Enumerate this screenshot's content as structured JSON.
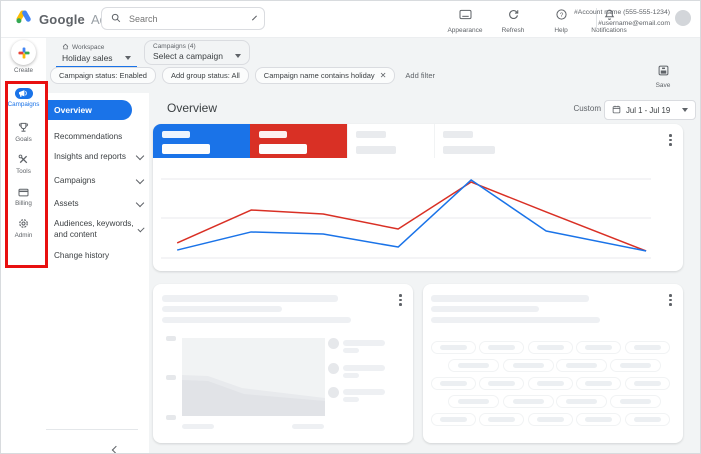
{
  "header": {
    "logo": {
      "brand": "Google",
      "product": "Ads"
    },
    "search": {
      "placeholder": "Search"
    },
    "actions": [
      {
        "label": "Appearance",
        "icon": "appearance-icon"
      },
      {
        "label": "Refresh",
        "icon": "refresh-icon"
      },
      {
        "label": "Help",
        "icon": "help-icon"
      },
      {
        "label": "Notifications",
        "icon": "notifications-icon"
      }
    ],
    "account": {
      "line1": "#Account name (555-555-1234)",
      "line2": "#username@email.com"
    }
  },
  "toolbar": {
    "workspace": {
      "label": "Workspace",
      "value": "Holiday sales"
    },
    "campaign_select": {
      "label": "Campaigns (4)",
      "value": "Select a campaign"
    },
    "filter_chips": [
      {
        "label": "Campaign status: Enabled",
        "closable": false
      },
      {
        "label": "Add group status: All",
        "closable": false
      },
      {
        "label": "Campaign name contains holiday",
        "closable": true
      }
    ],
    "add_filter": "Add filter",
    "save": "Save"
  },
  "rail": {
    "create": "Create",
    "items": [
      {
        "label": "Campaigns",
        "icon": "campaigns-icon",
        "active": true
      },
      {
        "label": "Goals",
        "icon": "goals-icon",
        "active": false
      },
      {
        "label": "Tools",
        "icon": "tools-icon",
        "active": false
      },
      {
        "label": "Billing",
        "icon": "billing-icon",
        "active": false
      },
      {
        "label": "Admin",
        "icon": "admin-icon",
        "active": false
      }
    ]
  },
  "annotation": {
    "color": "#e81010"
  },
  "nav": {
    "items": [
      {
        "label": "Overview",
        "active": true,
        "expandable": false
      },
      {
        "label": "Recommendations",
        "active": false,
        "expandable": false
      },
      {
        "label": "Insights and reports",
        "active": false,
        "expandable": true
      },
      {
        "label": "Campaigns",
        "active": false,
        "expandable": true
      },
      {
        "label": "Assets",
        "active": false,
        "expandable": true
      },
      {
        "label": "Audiences, keywords, and content",
        "active": false,
        "expandable": true
      },
      {
        "label": "Change history",
        "active": false,
        "expandable": false
      }
    ]
  },
  "main": {
    "title": "Overview",
    "date_range": {
      "mode": "Custom",
      "value": "Jul 1 - Jul 19"
    }
  },
  "chart_data": {
    "type": "line",
    "title": "",
    "x_labels": [],
    "x_pct": [
      3.3,
      18.4,
      33.1,
      48.4,
      63.3,
      78.6,
      99.0
    ],
    "series": [
      {
        "name": "red-series",
        "color": "#d93025",
        "values": [
          23.1,
          54.8,
          51.0,
          36.5,
          81.7,
          52.9,
          15.4
        ]
      },
      {
        "name": "blue-series",
        "color": "#1a73e8",
        "values": [
          16.3,
          33.7,
          31.7,
          19.2,
          83.7,
          34.6,
          15.4
        ]
      }
    ],
    "ylim": [
      0,
      100
    ],
    "gridline_values": [
      84.6,
      47.1,
      8.7
    ],
    "legend": "none",
    "grid": true
  }
}
